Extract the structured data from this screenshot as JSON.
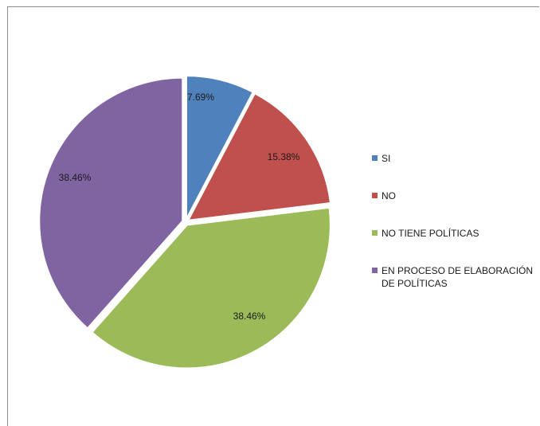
{
  "chart_data": {
    "type": "pie",
    "title": "",
    "categories": [
      "SI",
      "NO",
      "NO TIENE POLÍTICAS",
      "EN PROCESO DE ELABORACIÓN DE POLÍTICAS"
    ],
    "values": [
      7.69,
      15.38,
      38.46,
      38.46
    ],
    "value_labels": [
      "7.69%",
      "15.38%",
      "38.46%",
      "38.46%"
    ],
    "colors": [
      "#4f81bd",
      "#c0504d",
      "#9bbb59",
      "#8064a2"
    ],
    "legend_position": "right",
    "exploded": true
  }
}
